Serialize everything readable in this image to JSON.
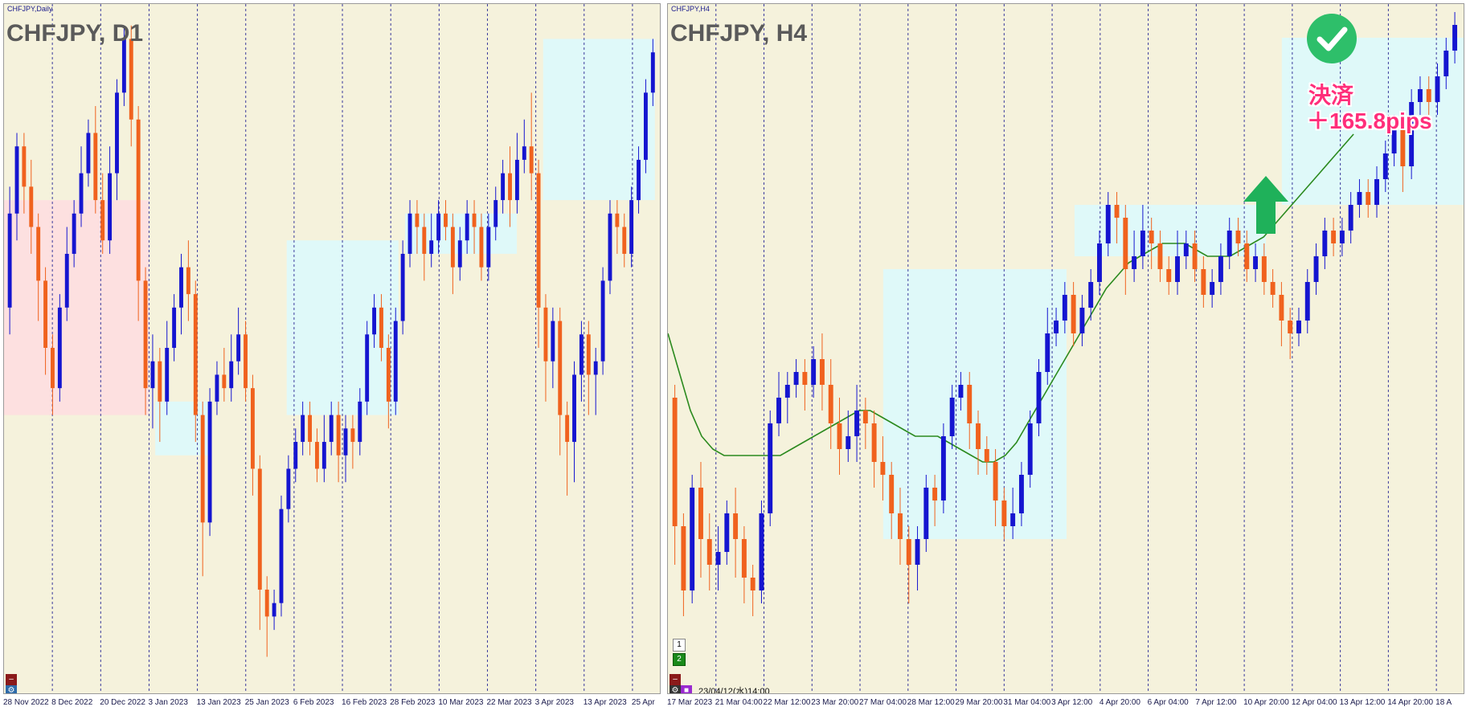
{
  "left_window": {
    "title": "CHFJPY,Daily",
    "chart_label": "CHFJPY, D1",
    "x_ticks": [
      "28 Nov 2022",
      "8 Dec 2022",
      "20 Dec 2022",
      "3 Jan 2023",
      "13 Jan 2023",
      "25 Jan 2023",
      "6 Feb 2023",
      "16 Feb 2023",
      "28 Feb 2023",
      "10 Mar 2023",
      "22 Mar 2023",
      "3 Apr 2023",
      "13 Apr 2023",
      "25 Apr"
    ]
  },
  "right_window": {
    "title": "CHFJPY,H4",
    "chart_label": "CHFJPY, H4",
    "x_ticks": [
      "17 Mar 2023",
      "21 Mar 04:00",
      "22 Mar 12:00",
      "23 Mar 20:00",
      "27 Mar 04:00",
      "28 Mar 12:00",
      "29 Mar 20:00",
      "31 Mar 04:00",
      "3 Apr 12:00",
      "4 Apr 20:00",
      "6 Apr 04:00",
      "7 Apr 12:00",
      "10 Apr 20:00",
      "12 Apr 04:00",
      "13 Apr 12:00",
      "14 Apr 20:00",
      "18 A"
    ],
    "timestamp": "23/04/12(水)14:00",
    "panel_buttons": [
      "1",
      "2"
    ],
    "annotation_line1": "決済",
    "annotation_line2": "＋165.8pips"
  },
  "colors": {
    "bull": "#1515d0",
    "bear": "#f0621e",
    "background": "#f5f2dc",
    "box_blue": "#dff9f9",
    "box_pink": "#fde0e0",
    "ma": "#2b8a1e",
    "annotation": "#ff2e7a",
    "arrow": "#1fb15a"
  },
  "chart_data": [
    {
      "type": "candlestick",
      "symbol": "CHFJPY",
      "timeframe": "D1",
      "x_range": [
        "28 Nov 2022",
        "25 Apr 2023"
      ],
      "y_range": [
        0,
        100
      ],
      "grid": true,
      "candles": [
        [
          56,
          70,
          52,
          74
        ],
        [
          70,
          80,
          66,
          82
        ],
        [
          80,
          74,
          70,
          82
        ],
        [
          74,
          68,
          64,
          78
        ],
        [
          68,
          60,
          54,
          70
        ],
        [
          60,
          50,
          46,
          62
        ],
        [
          50,
          44,
          40,
          52
        ],
        [
          44,
          56,
          42,
          58
        ],
        [
          56,
          64,
          54,
          68
        ],
        [
          64,
          70,
          62,
          72
        ],
        [
          70,
          76,
          68,
          80
        ],
        [
          76,
          82,
          74,
          84
        ],
        [
          82,
          72,
          70,
          86
        ],
        [
          72,
          66,
          64,
          76
        ],
        [
          66,
          76,
          64,
          80
        ],
        [
          76,
          88,
          72,
          90
        ],
        [
          88,
          96,
          86,
          98
        ],
        [
          96,
          84,
          80,
          98
        ],
        [
          84,
          60,
          54,
          86
        ],
        [
          60,
          44,
          40,
          62
        ],
        [
          44,
          48,
          38,
          52
        ],
        [
          48,
          42,
          36,
          50
        ],
        [
          42,
          50,
          40,
          54
        ],
        [
          50,
          56,
          48,
          58
        ],
        [
          56,
          62,
          52,
          64
        ],
        [
          62,
          58,
          54,
          66
        ],
        [
          58,
          40,
          36,
          60
        ],
        [
          40,
          24,
          16,
          42
        ],
        [
          24,
          42,
          22,
          44
        ],
        [
          42,
          46,
          40,
          48
        ],
        [
          46,
          44,
          42,
          50
        ],
        [
          44,
          48,
          42,
          52
        ],
        [
          48,
          52,
          46,
          56
        ],
        [
          52,
          44,
          42,
          54
        ],
        [
          44,
          32,
          28,
          46
        ],
        [
          32,
          14,
          8,
          34
        ],
        [
          14,
          10,
          4,
          16
        ],
        [
          10,
          12,
          8,
          14
        ],
        [
          12,
          26,
          10,
          28
        ],
        [
          26,
          32,
          24,
          34
        ],
        [
          32,
          36,
          30,
          38
        ],
        [
          36,
          40,
          34,
          42
        ],
        [
          40,
          36,
          34,
          42
        ],
        [
          36,
          32,
          30,
          38
        ],
        [
          32,
          36,
          30,
          40
        ],
        [
          36,
          40,
          34,
          42
        ],
        [
          40,
          34,
          30,
          42
        ],
        [
          34,
          38,
          30,
          40
        ],
        [
          38,
          36,
          32,
          40
        ],
        [
          36,
          42,
          34,
          44
        ],
        [
          42,
          52,
          40,
          54
        ],
        [
          52,
          56,
          50,
          58
        ],
        [
          56,
          50,
          48,
          58
        ],
        [
          50,
          42,
          38,
          52
        ],
        [
          42,
          54,
          40,
          56
        ],
        [
          54,
          64,
          52,
          66
        ],
        [
          64,
          70,
          62,
          72
        ],
        [
          70,
          68,
          64,
          72
        ],
        [
          68,
          64,
          60,
          70
        ],
        [
          64,
          66,
          62,
          70
        ],
        [
          66,
          70,
          64,
          72
        ],
        [
          70,
          68,
          66,
          72
        ],
        [
          68,
          62,
          58,
          70
        ],
        [
          62,
          66,
          60,
          68
        ],
        [
          66,
          70,
          64,
          72
        ],
        [
          70,
          68,
          64,
          72
        ],
        [
          68,
          62,
          60,
          70
        ],
        [
          62,
          68,
          60,
          70
        ],
        [
          68,
          72,
          66,
          74
        ],
        [
          72,
          76,
          70,
          78
        ],
        [
          76,
          72,
          68,
          80
        ],
        [
          72,
          78,
          70,
          82
        ],
        [
          78,
          80,
          76,
          84
        ],
        [
          80,
          76,
          72,
          88
        ],
        [
          76,
          56,
          50,
          78
        ],
        [
          56,
          48,
          42,
          58
        ],
        [
          48,
          54,
          44,
          56
        ],
        [
          54,
          40,
          34,
          56
        ],
        [
          40,
          36,
          28,
          42
        ],
        [
          36,
          46,
          30,
          48
        ],
        [
          46,
          52,
          42,
          54
        ],
        [
          52,
          46,
          40,
          54
        ],
        [
          46,
          48,
          40,
          50
        ],
        [
          48,
          60,
          46,
          62
        ],
        [
          60,
          70,
          58,
          72
        ],
        [
          70,
          68,
          64,
          72
        ],
        [
          68,
          64,
          62,
          70
        ],
        [
          64,
          72,
          62,
          74
        ],
        [
          72,
          78,
          70,
          80
        ],
        [
          78,
          88,
          76,
          90
        ],
        [
          88,
          94,
          86,
          96
        ]
      ],
      "boxes": [
        {
          "x0": 0,
          "x1": 22,
          "y_low": 40,
          "y_high": 72,
          "color": "pink"
        },
        {
          "x0": 23,
          "x1": 31,
          "y_low": 34,
          "y_high": 42,
          "color": "blue"
        },
        {
          "x0": 43,
          "x1": 60,
          "y_low": 40,
          "y_high": 66,
          "color": "blue"
        },
        {
          "x0": 61,
          "x1": 78,
          "y_low": 64,
          "y_high": 70,
          "color": "blue"
        },
        {
          "x0": 82,
          "x1": 99,
          "y_low": 72,
          "y_high": 96,
          "color": "blue"
        }
      ]
    },
    {
      "type": "candlestick",
      "symbol": "CHFJPY",
      "timeframe": "H4",
      "x_range": [
        "17 Mar 2023",
        "18 Apr 2023"
      ],
      "y_range": [
        0,
        100
      ],
      "grid": true,
      "moving_average": true,
      "candles": [
        [
          40,
          20,
          14,
          42
        ],
        [
          20,
          10,
          6,
          22
        ],
        [
          10,
          26,
          8,
          28
        ],
        [
          26,
          18,
          12,
          30
        ],
        [
          18,
          14,
          10,
          22
        ],
        [
          14,
          16,
          10,
          20
        ],
        [
          16,
          22,
          14,
          24
        ],
        [
          22,
          18,
          12,
          26
        ],
        [
          18,
          12,
          8,
          20
        ],
        [
          12,
          10,
          6,
          14
        ],
        [
          10,
          22,
          8,
          24
        ],
        [
          22,
          36,
          20,
          38
        ],
        [
          36,
          40,
          34,
          44
        ],
        [
          40,
          42,
          36,
          44
        ],
        [
          42,
          44,
          40,
          46
        ],
        [
          44,
          42,
          38,
          46
        ],
        [
          42,
          46,
          40,
          48
        ],
        [
          46,
          42,
          38,
          50
        ],
        [
          42,
          36,
          32,
          46
        ],
        [
          36,
          32,
          28,
          40
        ],
        [
          32,
          34,
          30,
          38
        ],
        [
          34,
          38,
          30,
          42
        ],
        [
          38,
          36,
          32,
          40
        ],
        [
          36,
          30,
          26,
          38
        ],
        [
          30,
          28,
          24,
          34
        ],
        [
          28,
          22,
          18,
          30
        ],
        [
          22,
          18,
          14,
          26
        ],
        [
          18,
          14,
          8,
          20
        ],
        [
          14,
          18,
          10,
          20
        ],
        [
          18,
          26,
          16,
          28
        ],
        [
          26,
          24,
          20,
          28
        ],
        [
          24,
          34,
          22,
          36
        ],
        [
          34,
          40,
          32,
          42
        ],
        [
          40,
          42,
          38,
          44
        ],
        [
          42,
          36,
          32,
          44
        ],
        [
          36,
          32,
          28,
          38
        ],
        [
          32,
          30,
          28,
          34
        ],
        [
          30,
          24,
          20,
          32
        ],
        [
          24,
          20,
          18,
          26
        ],
        [
          20,
          22,
          18,
          26
        ],
        [
          22,
          28,
          20,
          30
        ],
        [
          28,
          36,
          26,
          38
        ],
        [
          36,
          44,
          34,
          46
        ],
        [
          44,
          50,
          42,
          54
        ],
        [
          50,
          52,
          48,
          54
        ],
        [
          52,
          56,
          50,
          58
        ],
        [
          56,
          50,
          48,
          58
        ],
        [
          50,
          54,
          48,
          56
        ],
        [
          54,
          58,
          52,
          60
        ],
        [
          58,
          64,
          56,
          66
        ],
        [
          64,
          70,
          62,
          72
        ],
        [
          70,
          68,
          64,
          72
        ],
        [
          68,
          60,
          56,
          70
        ],
        [
          60,
          62,
          58,
          66
        ],
        [
          62,
          66,
          60,
          70
        ],
        [
          66,
          64,
          60,
          68
        ],
        [
          64,
          60,
          58,
          66
        ],
        [
          60,
          58,
          56,
          62
        ],
        [
          58,
          62,
          56,
          66
        ],
        [
          62,
          64,
          60,
          66
        ],
        [
          64,
          60,
          58,
          66
        ],
        [
          60,
          56,
          54,
          62
        ],
        [
          56,
          58,
          54,
          60
        ],
        [
          58,
          62,
          56,
          64
        ],
        [
          62,
          66,
          60,
          68
        ],
        [
          66,
          64,
          62,
          68
        ],
        [
          64,
          60,
          58,
          66
        ],
        [
          60,
          62,
          58,
          64
        ],
        [
          62,
          58,
          56,
          64
        ],
        [
          58,
          56,
          54,
          60
        ],
        [
          56,
          52,
          48,
          58
        ],
        [
          52,
          50,
          46,
          54
        ],
        [
          50,
          52,
          48,
          54
        ],
        [
          52,
          58,
          50,
          60
        ],
        [
          58,
          62,
          56,
          64
        ],
        [
          62,
          66,
          60,
          68
        ],
        [
          66,
          64,
          62,
          68
        ],
        [
          64,
          66,
          62,
          68
        ],
        [
          66,
          70,
          64,
          72
        ],
        [
          70,
          72,
          68,
          74
        ],
        [
          72,
          70,
          68,
          74
        ],
        [
          70,
          74,
          68,
          76
        ],
        [
          74,
          78,
          72,
          80
        ],
        [
          78,
          82,
          76,
          84
        ],
        [
          82,
          76,
          72,
          84
        ],
        [
          76,
          86,
          74,
          88
        ],
        [
          86,
          88,
          84,
          90
        ],
        [
          88,
          86,
          84,
          90
        ],
        [
          86,
          90,
          84,
          92
        ],
        [
          90,
          94,
          88,
          96
        ],
        [
          94,
          98,
          92,
          100
        ]
      ],
      "boxes": [
        {
          "x0": 27,
          "x1": 50,
          "y_low": 18,
          "y_high": 60,
          "color": "blue"
        },
        {
          "x0": 51,
          "x1": 75,
          "y_low": 62,
          "y_high": 70,
          "color": "blue"
        },
        {
          "x0": 77,
          "x1": 100,
          "y_low": 70,
          "y_high": 96,
          "color": "blue"
        }
      ],
      "ma_values": [
        50,
        44,
        38,
        34,
        32,
        31,
        31,
        31,
        31,
        31,
        31,
        32,
        33,
        34,
        35,
        36,
        37,
        38,
        38,
        37,
        36,
        35,
        34,
        34,
        34,
        33,
        32,
        31,
        30,
        30,
        31,
        33,
        36,
        39,
        42,
        45,
        48,
        51,
        54,
        57,
        59,
        61,
        62,
        63,
        64,
        64,
        64,
        63,
        62,
        62,
        62,
        63,
        64,
        65,
        67,
        69,
        71,
        73,
        75,
        77,
        79,
        81
      ]
    }
  ]
}
